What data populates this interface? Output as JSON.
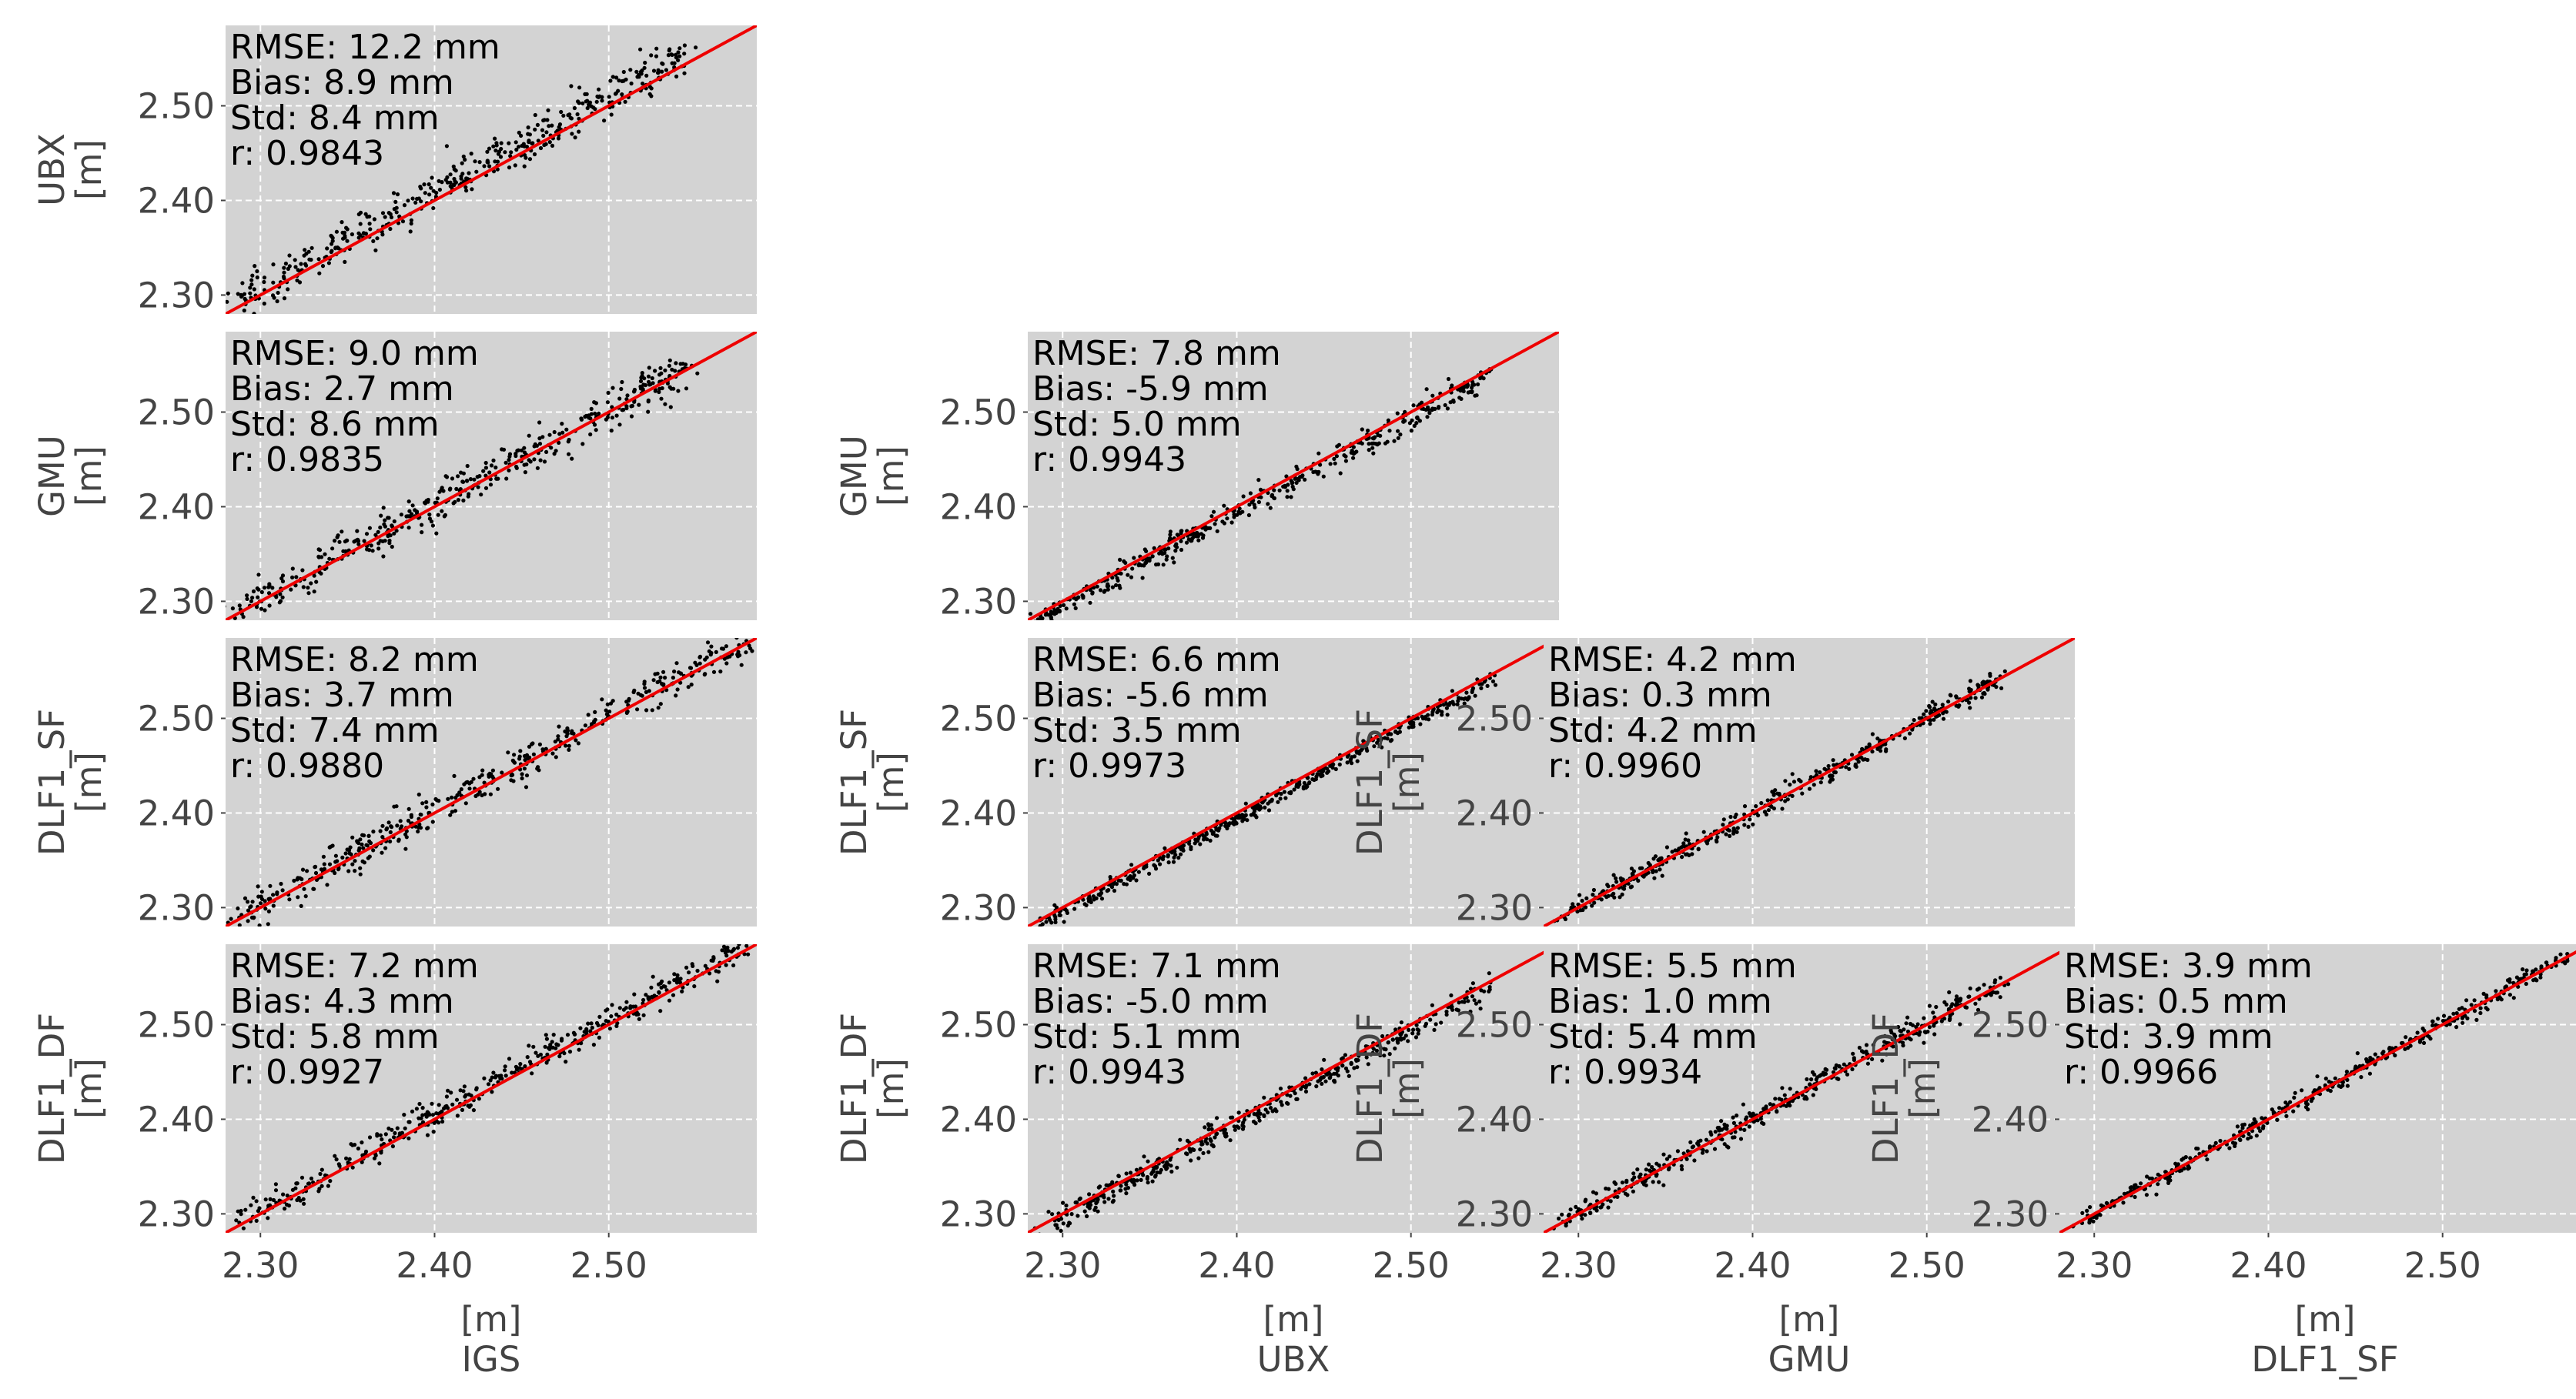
{
  "chart_data": {
    "type": "scatter",
    "title": "",
    "axis_unit": "[m]",
    "tick_labels": [
      "2.30",
      "2.40",
      "2.50"
    ],
    "tick_values": [
      2.3,
      2.4,
      2.5
    ],
    "grid": true,
    "reference_line": {
      "type": "1:1",
      "color": "#ee0000"
    },
    "colors": {
      "panel_bg": "#d3d3d3",
      "points": "#000000",
      "fit_line": "#ee0000",
      "grid": "#ffffff",
      "text": "#444444"
    },
    "x_names": [
      "IGS",
      "UBX",
      "GMU",
      "DLF1_SF"
    ],
    "y_names": [
      "UBX",
      "GMU",
      "DLF1_SF",
      "DLF1_DF"
    ],
    "panels": [
      {
        "id": "ubx-vs-igs",
        "x_name": "IGS",
        "y_name": "UBX",
        "xlim": [
          2.28,
          2.585
        ],
        "ylim": [
          2.28,
          2.585
        ],
        "stats": [
          "RMSE: 12.2 mm",
          "Bias: 8.9 mm",
          "Std: 8.4 mm",
          "r: 0.9843"
        ],
        "bias_mm": 8.9,
        "std_mm": 8.4,
        "r": 0.9843,
        "range": [
          2.285,
          2.545
        ]
      },
      {
        "id": "gmu-vs-igs",
        "x_name": "IGS",
        "y_name": "GMU",
        "xlim": [
          2.28,
          2.585
        ],
        "ylim": [
          2.28,
          2.585
        ],
        "stats": [
          "RMSE: 9.0 mm",
          "Bias: 2.7 mm",
          "Std: 8.6 mm",
          "r: 0.9835"
        ],
        "bias_mm": 2.7,
        "std_mm": 8.6,
        "r": 0.9835,
        "range": [
          2.285,
          2.545
        ]
      },
      {
        "id": "gmu-vs-ubx",
        "x_name": "UBX",
        "y_name": "GMU",
        "xlim": [
          2.28,
          2.585
        ],
        "ylim": [
          2.28,
          2.585
        ],
        "stats": [
          "RMSE: 7.8 mm",
          "Bias: -5.9 mm",
          "Std: 5.0 mm",
          "r: 0.9943"
        ],
        "bias_mm": -5.9,
        "std_mm": 5.0,
        "r": 0.9943,
        "range": [
          2.285,
          2.545
        ]
      },
      {
        "id": "dlf1sf-vs-igs",
        "x_name": "IGS",
        "y_name": "DLF1_SF",
        "xlim": [
          2.28,
          2.585
        ],
        "ylim": [
          2.28,
          2.585
        ],
        "stats": [
          "RMSE: 8.2 mm",
          "Bias: 3.7 mm",
          "Std: 7.4 mm",
          "r: 0.9880"
        ],
        "bias_mm": 3.7,
        "std_mm": 7.4,
        "r": 0.988,
        "range": [
          2.285,
          2.58
        ]
      },
      {
        "id": "dlf1sf-vs-ubx",
        "x_name": "UBX",
        "y_name": "DLF1_SF",
        "xlim": [
          2.28,
          2.585
        ],
        "ylim": [
          2.28,
          2.585
        ],
        "stats": [
          "RMSE: 6.6 mm",
          "Bias: -5.6 mm",
          "Std: 3.5 mm",
          "r: 0.9973"
        ],
        "bias_mm": -5.6,
        "std_mm": 3.5,
        "r": 0.9973,
        "range": [
          2.29,
          2.545
        ]
      },
      {
        "id": "dlf1sf-vs-gmu",
        "x_name": "GMU",
        "y_name": "DLF1_SF",
        "xlim": [
          2.28,
          2.585
        ],
        "ylim": [
          2.28,
          2.585
        ],
        "stats": [
          "RMSE: 4.2 mm",
          "Bias: 0.3 mm",
          "Std: 4.2 mm",
          "r: 0.9960"
        ],
        "bias_mm": 0.3,
        "std_mm": 4.2,
        "r": 0.996,
        "range": [
          2.29,
          2.545
        ]
      },
      {
        "id": "dlf1df-vs-igs",
        "x_name": "IGS",
        "y_name": "DLF1_DF",
        "xlim": [
          2.28,
          2.585
        ],
        "ylim": [
          2.28,
          2.585
        ],
        "stats": [
          "RMSE: 7.2 mm",
          "Bias: 4.3 mm",
          "Std: 5.8 mm",
          "r: 0.9927"
        ],
        "bias_mm": 4.3,
        "std_mm": 5.8,
        "r": 0.9927,
        "range": [
          2.285,
          2.58
        ]
      },
      {
        "id": "dlf1df-vs-ubx",
        "x_name": "UBX",
        "y_name": "DLF1_DF",
        "xlim": [
          2.28,
          2.585
        ],
        "ylim": [
          2.28,
          2.585
        ],
        "stats": [
          "RMSE: 7.1 mm",
          "Bias: -5.0 mm",
          "Std: 5.1 mm",
          "r: 0.9943"
        ],
        "bias_mm": -5.0,
        "std_mm": 5.1,
        "r": 0.9943,
        "range": [
          2.29,
          2.545
        ]
      },
      {
        "id": "dlf1df-vs-gmu",
        "x_name": "GMU",
        "y_name": "DLF1_DF",
        "xlim": [
          2.28,
          2.585
        ],
        "ylim": [
          2.28,
          2.585
        ],
        "stats": [
          "RMSE: 5.5 mm",
          "Bias: 1.0 mm",
          "Std: 5.4 mm",
          "r: 0.9934"
        ],
        "bias_mm": 1.0,
        "std_mm": 5.4,
        "r": 0.9934,
        "range": [
          2.29,
          2.545
        ]
      },
      {
        "id": "dlf1df-vs-dlf1sf",
        "x_name": "DLF1_SF",
        "y_name": "DLF1_DF",
        "xlim": [
          2.28,
          2.585
        ],
        "ylim": [
          2.28,
          2.585
        ],
        "stats": [
          "RMSE: 3.9 mm",
          "Bias: 0.5 mm",
          "Std: 3.9 mm",
          "r: 0.9966"
        ],
        "bias_mm": 0.5,
        "std_mm": 3.9,
        "r": 0.9966,
        "range": [
          2.29,
          2.575
        ]
      }
    ]
  }
}
